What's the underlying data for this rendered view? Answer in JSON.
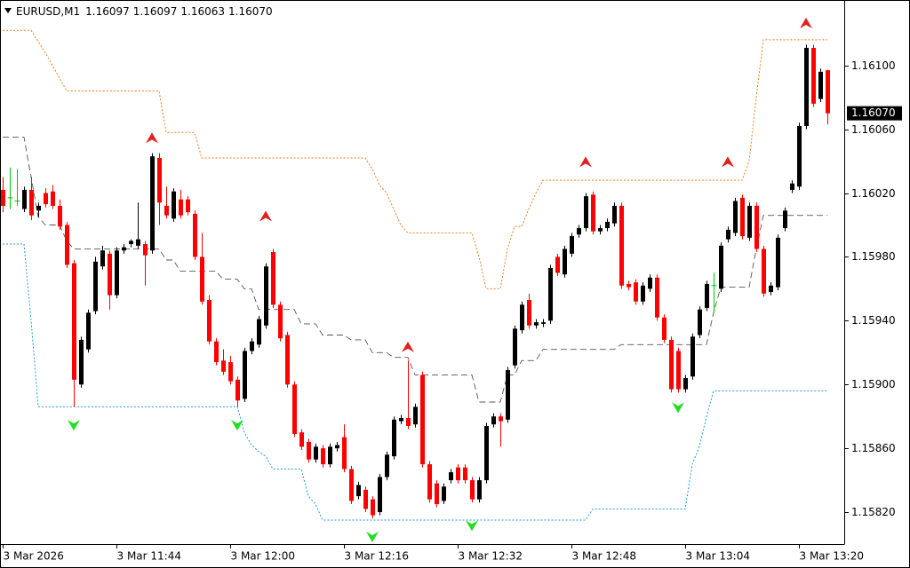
{
  "chart_data": {
    "type": "candlestick",
    "title": "EURUSD,M1",
    "last_bar_labels": [
      "1.16097",
      "1.16097",
      "1.16063",
      "1.16070"
    ],
    "categories": [
      "3 Mar 2026",
      null,
      null,
      null,
      null,
      null,
      null,
      null,
      null,
      null,
      null,
      null,
      null,
      null,
      null,
      null,
      "3 Mar 11:44",
      null,
      null,
      null,
      null,
      null,
      null,
      null,
      null,
      null,
      null,
      null,
      null,
      null,
      null,
      null,
      "3 Mar 12:00",
      null,
      null,
      null,
      null,
      null,
      null,
      null,
      null,
      null,
      null,
      null,
      null,
      null,
      null,
      null,
      "3 Mar 12:16",
      null,
      null,
      null,
      null,
      null,
      null,
      null,
      null,
      null,
      null,
      null,
      null,
      null,
      null,
      null,
      "3 Mar 12:32",
      null,
      null,
      null,
      null,
      null,
      null,
      null,
      null,
      null,
      null,
      null,
      null,
      null,
      null,
      null,
      "3 Mar 12:48",
      null,
      null,
      null,
      null,
      null,
      null,
      null,
      null,
      null,
      null,
      null,
      null,
      null,
      null,
      null,
      "3 Mar 13:04",
      null,
      null,
      null,
      null,
      null,
      null,
      null,
      null,
      null,
      null,
      null,
      null,
      null,
      null,
      null,
      "3 Mar 13:20",
      null,
      null,
      null,
      null
    ],
    "ohlc": [
      [
        1.16022,
        1.1603,
        1.16008,
        1.16012
      ],
      [
        1.16017,
        1.16036,
        1.1601,
        1.16017
      ],
      [
        1.16015,
        1.16035,
        1.16012,
        1.16015
      ],
      [
        1.1601,
        1.16024,
        1.16008,
        1.16022
      ],
      [
        1.16022,
        1.1603,
        1.16003,
        1.16006
      ],
      [
        1.16009,
        1.16014,
        1.16005,
        1.16012
      ],
      [
        1.1602,
        1.16023,
        1.16011,
        1.16013
      ],
      [
        1.16021,
        1.16025,
        1.1601,
        1.16012
      ],
      [
        1.16012,
        1.16016,
        1.15997,
        1.15999
      ],
      [
        1.16,
        1.16002,
        1.15973,
        1.15975
      ],
      [
        1.15976,
        1.15978,
        1.15886,
        1.15903
      ],
      [
        1.159,
        1.1593,
        1.15898,
        1.15928
      ],
      [
        1.15922,
        1.15947,
        1.1592,
        1.15945
      ],
      [
        1.15946,
        1.1598,
        1.15944,
        1.15977
      ],
      [
        1.15974,
        1.15987,
        1.15972,
        1.15984
      ],
      [
        1.15982,
        1.15984,
        1.15947,
        1.15956
      ],
      [
        1.15956,
        1.15986,
        1.15954,
        1.15984
      ],
      [
        1.15984,
        1.15988,
        1.15982,
        1.15986
      ],
      [
        1.15988,
        1.15991,
        1.15986,
        1.1599
      ],
      [
        1.15987,
        1.16014,
        1.15985,
        1.15991
      ],
      [
        1.15988,
        1.1599,
        1.15962,
        1.15981
      ],
      [
        1.15984,
        1.16045,
        1.15982,
        1.16043
      ],
      [
        1.16042,
        1.16045,
        1.16,
        1.16014
      ],
      [
        1.16012,
        1.16024,
        1.16004,
        1.16006
      ],
      [
        1.16004,
        1.16023,
        1.16002,
        1.16021
      ],
      [
        1.16016,
        1.16022,
        1.16004,
        1.16006
      ],
      [
        1.16016,
        1.16018,
        1.16006,
        1.16008
      ],
      [
        1.16007,
        1.16009,
        1.15978,
        1.1598
      ],
      [
        1.1598,
        1.15995,
        1.1595,
        1.15952
      ],
      [
        1.15953,
        1.15956,
        1.15925,
        1.15927
      ],
      [
        1.15927,
        1.15929,
        1.15912,
        1.15914
      ],
      [
        1.15915,
        1.15922,
        1.15906,
        1.15908
      ],
      [
        1.15914,
        1.15918,
        1.159,
        1.15902
      ],
      [
        1.15903,
        1.15905,
        1.15886,
        1.1589
      ],
      [
        1.15891,
        1.15923,
        1.15889,
        1.15921
      ],
      [
        1.15921,
        1.15929,
        1.15919,
        1.15927
      ],
      [
        1.15925,
        1.15943,
        1.15923,
        1.15941
      ],
      [
        1.15937,
        1.15976,
        1.15935,
        1.15974
      ],
      [
        1.15983,
        1.15985,
        1.15948,
        1.1595
      ],
      [
        1.1595,
        1.15952,
        1.15927,
        1.15929
      ],
      [
        1.15931,
        1.15933,
        1.15898,
        1.159
      ],
      [
        1.159,
        1.15902,
        1.15867,
        1.15869
      ],
      [
        1.1587,
        1.15872,
        1.15859,
        1.15861
      ],
      [
        1.15864,
        1.15866,
        1.15851,
        1.15853
      ],
      [
        1.15853,
        1.15863,
        1.15851,
        1.15861
      ],
      [
        1.1586,
        1.15862,
        1.15848,
        1.1585
      ],
      [
        1.1585,
        1.15863,
        1.15848,
        1.15861
      ],
      [
        1.1586,
        1.15864,
        1.15858,
        1.15862
      ],
      [
        1.15867,
        1.15875,
        1.15845,
        1.15847
      ],
      [
        1.15847,
        1.15849,
        1.15825,
        1.15827
      ],
      [
        1.1583,
        1.15839,
        1.15828,
        1.15837
      ],
      [
        1.15834,
        1.15836,
        1.1582,
        1.15822
      ],
      [
        1.15828,
        1.1583,
        1.15816,
        1.15818
      ],
      [
        1.1582,
        1.15844,
        1.15818,
        1.15842
      ],
      [
        1.15842,
        1.15858,
        1.1584,
        1.15856
      ],
      [
        1.15855,
        1.1588,
        1.15853,
        1.15878
      ],
      [
        1.15877,
        1.15881,
        1.15875,
        1.15879
      ],
      [
        1.15879,
        1.15915,
        1.15872,
        1.15874
      ],
      [
        1.15875,
        1.15888,
        1.15873,
        1.15886
      ],
      [
        1.15906,
        1.15908,
        1.15848,
        1.1585
      ],
      [
        1.1585,
        1.15852,
        1.15826,
        1.15828
      ],
      [
        1.15838,
        1.1584,
        1.15823,
        1.15825
      ],
      [
        1.15827,
        1.15838,
        1.15825,
        1.15836
      ],
      [
        1.1584,
        1.15847,
        1.15838,
        1.15845
      ],
      [
        1.15848,
        1.1585,
        1.15838,
        1.1584
      ],
      [
        1.15848,
        1.1585,
        1.15838,
        1.1584
      ],
      [
        1.1584,
        1.15842,
        1.15826,
        1.15828
      ],
      [
        1.15828,
        1.15842,
        1.15826,
        1.1584
      ],
      [
        1.1584,
        1.15876,
        1.15838,
        1.15874
      ],
      [
        1.15875,
        1.15882,
        1.15873,
        1.1588
      ],
      [
        1.1588,
        1.15882,
        1.15861,
        1.15877
      ],
      [
        1.15878,
        1.15911,
        1.15876,
        1.15909
      ],
      [
        1.15912,
        1.15937,
        1.1591,
        1.15935
      ],
      [
        1.15934,
        1.15952,
        1.15932,
        1.1595
      ],
      [
        1.15953,
        1.15957,
        1.15935,
        1.15937
      ],
      [
        1.15937,
        1.15941,
        1.15935,
        1.15939
      ],
      [
        1.15938,
        1.15941,
        1.15936,
        1.15939
      ],
      [
        1.1594,
        1.15975,
        1.15938,
        1.15973
      ],
      [
        1.1598,
        1.15982,
        1.15968,
        1.1597
      ],
      [
        1.15969,
        1.15987,
        1.15967,
        1.15985
      ],
      [
        1.15982,
        1.15995,
        1.1598,
        1.15993
      ],
      [
        1.15994,
        1.16,
        1.15992,
        1.15998
      ],
      [
        1.15998,
        1.1602,
        1.15996,
        1.16018
      ],
      [
        1.16019,
        1.16021,
        1.15994,
        1.15996
      ],
      [
        1.15996,
        1.16,
        1.15994,
        1.15998
      ],
      [
        1.15998,
        1.16004,
        1.15996,
        1.16002
      ],
      [
        1.16001,
        1.16014,
        1.15999,
        1.16012
      ],
      [
        1.16012,
        1.16014,
        1.1596,
        1.15962
      ],
      [
        1.15963,
        1.15965,
        1.15959,
        1.15961
      ],
      [
        1.15964,
        1.15966,
        1.1595,
        1.15952
      ],
      [
        1.15952,
        1.15964,
        1.1595,
        1.15962
      ],
      [
        1.1596,
        1.15969,
        1.15958,
        1.15967
      ],
      [
        1.15967,
        1.15969,
        1.1594,
        1.15942
      ],
      [
        1.15942,
        1.15944,
        1.15926,
        1.15928
      ],
      [
        1.15928,
        1.1593,
        1.15895,
        1.15897
      ],
      [
        1.15921,
        1.15923,
        1.15895,
        1.15897
      ],
      [
        1.15897,
        1.15906,
        1.15895,
        1.15904
      ],
      [
        1.15905,
        1.15932,
        1.15903,
        1.1593
      ],
      [
        1.15931,
        1.15949,
        1.15929,
        1.15947
      ],
      [
        1.15948,
        1.15965,
        1.15946,
        1.15963
      ],
      [
        1.15962,
        1.1597,
        1.15945,
        1.15962
      ],
      [
        1.1596,
        1.15989,
        1.15958,
        1.15987
      ],
      [
        1.15991,
        1.15999,
        1.15989,
        1.15997
      ],
      [
        1.15995,
        1.16017,
        1.15993,
        1.16015
      ],
      [
        1.16017,
        1.16019,
        1.15991,
        1.15993
      ],
      [
        1.15992,
        1.16014,
        1.1599,
        1.16012
      ],
      [
        1.16012,
        1.16014,
        1.15983,
        1.15985
      ],
      [
        1.15985,
        1.15987,
        1.15955,
        1.15957
      ],
      [
        1.15958,
        1.15964,
        1.15956,
        1.15962
      ],
      [
        1.15961,
        1.15994,
        1.15959,
        1.15992
      ],
      [
        1.15998,
        1.16011,
        1.15996,
        1.16009
      ],
      [
        1.16022,
        1.16028,
        1.1602,
        1.16026
      ],
      [
        1.16024,
        1.16064,
        1.16022,
        1.16062
      ],
      [
        1.16062,
        1.16113,
        1.1606,
        1.16111
      ],
      [
        1.16111,
        1.16113,
        1.16074,
        1.16076
      ],
      [
        1.16079,
        1.16098,
        1.16077,
        1.16096
      ],
      [
        1.16097,
        1.16097,
        1.16063,
        1.1607
      ]
    ],
    "up_color": "#000000",
    "down_color": "#ff0000",
    "doji_color": "#00c800",
    "ylim": [
      1.158,
      1.16141
    ],
    "yticks": [
      {
        "value": 1.161,
        "label": "1.16100"
      },
      {
        "value": 1.1606,
        "label": "1.16060"
      },
      {
        "value": 1.1602,
        "label": "1.16020"
      },
      {
        "value": 1.1598,
        "label": "1.15980"
      },
      {
        "value": 1.1594,
        "label": "1.15940"
      },
      {
        "value": 1.159,
        "label": "1.15900"
      },
      {
        "value": 1.1586,
        "label": "1.15860"
      },
      {
        "value": 1.1582,
        "label": "1.15820"
      }
    ],
    "current_price": {
      "value": 1.1607,
      "label": "1.16070"
    },
    "lines": [
      {
        "color": "#f07d1a",
        "style": "dotted",
        "values": [
          1.16122,
          1.16122,
          1.16122,
          1.16122,
          1.16122,
          1.16115,
          1.16108,
          1.161,
          1.16092,
          1.16084,
          1.16084,
          1.16084,
          1.16084,
          1.16084,
          1.16084,
          1.16084,
          1.16084,
          1.16084,
          1.16084,
          1.16084,
          1.16084,
          1.16084,
          1.16084,
          1.16058,
          1.16058,
          1.16058,
          1.16058,
          1.16058,
          1.16042,
          1.16042,
          1.16042,
          1.16042,
          1.16042,
          1.16042,
          1.16042,
          1.16042,
          1.16042,
          1.16042,
          1.16042,
          1.16042,
          1.16042,
          1.16042,
          1.16042,
          1.16042,
          1.16042,
          1.16042,
          1.16042,
          1.16042,
          1.16042,
          1.16042,
          1.16042,
          1.16042,
          1.16035,
          1.16025,
          1.1602,
          1.1601,
          1.16,
          1.15995,
          1.15995,
          1.15995,
          1.15995,
          1.15995,
          1.15995,
          1.15995,
          1.15995,
          1.15995,
          1.15995,
          1.1598,
          1.1596,
          1.1596,
          1.1596,
          1.15985,
          1.15999,
          1.15999,
          1.1601,
          1.1602,
          1.16028,
          1.16028,
          1.16028,
          1.16028,
          1.16028,
          1.16028,
          1.16028,
          1.16028,
          1.16028,
          1.16028,
          1.16028,
          1.16028,
          1.16028,
          1.16028,
          1.16028,
          1.16028,
          1.16028,
          1.16028,
          1.16028,
          1.16028,
          1.16028,
          1.16028,
          1.16028,
          1.16028,
          1.16028,
          1.16028,
          1.16028,
          1.16028,
          1.16028,
          1.1604,
          1.1608,
          1.16116,
          1.16116,
          1.16116,
          1.16116,
          1.16116,
          1.16116,
          1.16116,
          1.16116,
          1.16116,
          1.16116
        ]
      },
      {
        "color": "#1e9bd7",
        "style": "dotted",
        "values": [
          1.15988,
          1.15988,
          1.15988,
          1.15988,
          1.1594,
          1.15886,
          1.15886,
          1.15886,
          1.15886,
          1.15886,
          1.15886,
          1.15886,
          1.15886,
          1.15886,
          1.15886,
          1.15886,
          1.15886,
          1.15886,
          1.15886,
          1.15886,
          1.15886,
          1.15886,
          1.15886,
          1.15886,
          1.15886,
          1.15886,
          1.15886,
          1.15886,
          1.15886,
          1.15886,
          1.15886,
          1.15886,
          1.15886,
          1.15886,
          1.1587,
          1.15862,
          1.15858,
          1.15855,
          1.15847,
          1.15847,
          1.15847,
          1.15847,
          1.15847,
          1.1583,
          1.15825,
          1.15815,
          1.15815,
          1.15815,
          1.15815,
          1.15815,
          1.15815,
          1.15815,
          1.15815,
          1.15815,
          1.15815,
          1.15815,
          1.15815,
          1.15815,
          1.15815,
          1.15815,
          1.15815,
          1.15815,
          1.15815,
          1.15815,
          1.15815,
          1.15815,
          1.15815,
          1.15815,
          1.15815,
          1.15815,
          1.15815,
          1.15815,
          1.15815,
          1.15815,
          1.15815,
          1.15815,
          1.15815,
          1.15815,
          1.15815,
          1.15815,
          1.15815,
          1.15815,
          1.15815,
          1.15822,
          1.15822,
          1.15822,
          1.15822,
          1.15822,
          1.15822,
          1.15822,
          1.15822,
          1.15822,
          1.15822,
          1.15822,
          1.15822,
          1.15822,
          1.15822,
          1.1585,
          1.15861,
          1.1588,
          1.15896,
          1.15896,
          1.15896,
          1.15896,
          1.15896,
          1.15896,
          1.15896,
          1.15896,
          1.15896,
          1.15896,
          1.15896,
          1.15896,
          1.15896,
          1.15896,
          1.15896,
          1.15896,
          1.15896
        ]
      },
      {
        "color": "#555555",
        "style": "dashed",
        "values": [
          1.16055,
          1.16055,
          1.16055,
          1.16055,
          1.1603,
          1.16005,
          1.16,
          1.16,
          1.16,
          1.1599,
          1.15985,
          1.15985,
          1.15985,
          1.15985,
          1.15985,
          1.15985,
          1.15985,
          1.15985,
          1.15985,
          1.15985,
          1.15985,
          1.15985,
          1.15985,
          1.15978,
          1.15978,
          1.15971,
          1.15971,
          1.15971,
          1.15971,
          1.15971,
          1.15971,
          1.15966,
          1.15966,
          1.15966,
          1.1596,
          1.1596,
          1.15947,
          1.15947,
          1.15947,
          1.15947,
          1.15947,
          1.15947,
          1.15938,
          1.15938,
          1.15938,
          1.15931,
          1.15931,
          1.15931,
          1.15931,
          1.15928,
          1.15928,
          1.15928,
          1.1592,
          1.1592,
          1.1592,
          1.15917,
          1.15917,
          1.15917,
          1.15906,
          1.15906,
          1.15906,
          1.15906,
          1.15906,
          1.15906,
          1.15906,
          1.15906,
          1.15906,
          1.15889,
          1.15889,
          1.15889,
          1.15889,
          1.15906,
          1.15906,
          1.15915,
          1.15915,
          1.15915,
          1.15922,
          1.15922,
          1.15922,
          1.15922,
          1.15922,
          1.15922,
          1.15922,
          1.15922,
          1.15922,
          1.15922,
          1.15922,
          1.15925,
          1.15925,
          1.15925,
          1.15925,
          1.15925,
          1.15925,
          1.15925,
          1.15925,
          1.15925,
          1.15925,
          1.15925,
          1.15925,
          1.15925,
          1.15945,
          1.15961,
          1.15961,
          1.15961,
          1.15961,
          1.15961,
          1.15985,
          1.16006,
          1.16006,
          1.16006,
          1.16006,
          1.16006,
          1.16006,
          1.16006,
          1.16006,
          1.16006,
          1.16006
        ]
      }
    ],
    "up_arrows": [
      {
        "bar": 21,
        "value": 1.16054
      },
      {
        "bar": 37,
        "value": 1.16005
      },
      {
        "bar": 57,
        "value": 1.15923
      },
      {
        "bar": 82,
        "value": 1.16039
      },
      {
        "bar": 102,
        "value": 1.16039
      },
      {
        "bar": 113,
        "value": 1.16126
      }
    ],
    "up_arrow_color": "#e02020",
    "down_arrows": [
      {
        "bar": 10,
        "value": 1.15875
      },
      {
        "bar": 33,
        "value": 1.15875
      },
      {
        "bar": 52,
        "value": 1.15805
      },
      {
        "bar": 66,
        "value": 1.15812
      },
      {
        "bar": 95,
        "value": 1.15886
      }
    ],
    "down_arrow_color": "#22dd22"
  }
}
